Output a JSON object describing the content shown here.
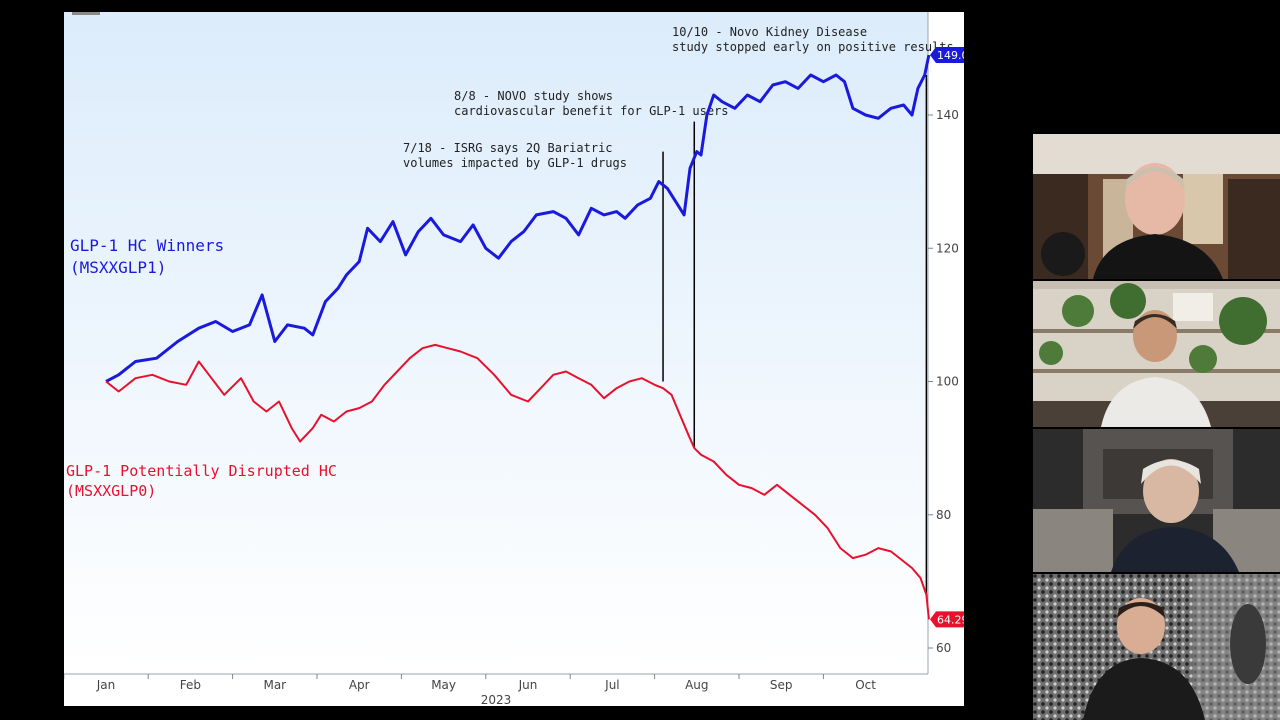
{
  "chart_data": {
    "type": "line",
    "xlabel": "2023",
    "ylabel": "",
    "ylim": [
      56,
      152
    ],
    "x_months": [
      "Jan",
      "Feb",
      "Mar",
      "Apr",
      "May",
      "Jun",
      "Jul",
      "Aug",
      "Sep",
      "Oct"
    ],
    "y_ticks": [
      "60",
      "80",
      "100",
      "120",
      "140"
    ],
    "series": [
      {
        "name": "GLP-1 HC Winners (MSXXGLP1)",
        "color": "#1a1adc",
        "last_value_label": "149.0",
        "points": [
          [
            0.0,
            100.0
          ],
          [
            0.15,
            101.0
          ],
          [
            0.35,
            103.0
          ],
          [
            0.6,
            103.5
          ],
          [
            0.85,
            106.0
          ],
          [
            1.1,
            108.0
          ],
          [
            1.3,
            109.0
          ],
          [
            1.5,
            107.5
          ],
          [
            1.7,
            108.5
          ],
          [
            1.85,
            113.0
          ],
          [
            2.0,
            106.0
          ],
          [
            2.15,
            108.5
          ],
          [
            2.35,
            108.0
          ],
          [
            2.45,
            107.0
          ],
          [
            2.6,
            112.0
          ],
          [
            2.75,
            114.0
          ],
          [
            2.85,
            116.0
          ],
          [
            3.0,
            118.0
          ],
          [
            3.1,
            123.0
          ],
          [
            3.25,
            121.0
          ],
          [
            3.4,
            124.0
          ],
          [
            3.55,
            119.0
          ],
          [
            3.7,
            122.5
          ],
          [
            3.85,
            124.5
          ],
          [
            4.0,
            122.0
          ],
          [
            4.2,
            121.0
          ],
          [
            4.35,
            123.5
          ],
          [
            4.5,
            120.0
          ],
          [
            4.65,
            118.5
          ],
          [
            4.8,
            121.0
          ],
          [
            4.95,
            122.5
          ],
          [
            5.1,
            125.0
          ],
          [
            5.3,
            125.5
          ],
          [
            5.45,
            124.5
          ],
          [
            5.6,
            122.0
          ],
          [
            5.75,
            126.0
          ],
          [
            5.9,
            125.0
          ],
          [
            6.05,
            125.5
          ],
          [
            6.15,
            124.5
          ],
          [
            6.3,
            126.5
          ],
          [
            6.45,
            127.5
          ],
          [
            6.55,
            130.0
          ],
          [
            6.65,
            129.0
          ],
          [
            6.75,
            127.0
          ],
          [
            6.85,
            125.0
          ],
          [
            6.92,
            132.0
          ],
          [
            7.0,
            134.5
          ],
          [
            7.05,
            134.0
          ],
          [
            7.12,
            140.0
          ],
          [
            7.2,
            143.0
          ],
          [
            7.3,
            142.0
          ],
          [
            7.45,
            141.0
          ],
          [
            7.6,
            143.0
          ],
          [
            7.75,
            142.0
          ],
          [
            7.9,
            144.5
          ],
          [
            8.05,
            145.0
          ],
          [
            8.2,
            144.0
          ],
          [
            8.35,
            146.0
          ],
          [
            8.5,
            145.0
          ],
          [
            8.65,
            146.0
          ],
          [
            8.75,
            145.0
          ],
          [
            8.85,
            141.0
          ],
          [
            9.0,
            140.0
          ],
          [
            9.15,
            139.5
          ],
          [
            9.3,
            141.0
          ],
          [
            9.45,
            141.5
          ],
          [
            9.55,
            140.0
          ],
          [
            9.62,
            144.0
          ],
          [
            9.7,
            146.0
          ],
          [
            9.75,
            149.0
          ]
        ]
      },
      {
        "name": "GLP-1 Potentially Disrupted HC (MSXXGLP0)",
        "color": "#e8112d",
        "last_value_label": "64.29",
        "points": [
          [
            0.0,
            100.0
          ],
          [
            0.15,
            98.5
          ],
          [
            0.35,
            100.5
          ],
          [
            0.55,
            101.0
          ],
          [
            0.75,
            100.0
          ],
          [
            0.95,
            99.5
          ],
          [
            1.1,
            103.0
          ],
          [
            1.25,
            100.5
          ],
          [
            1.4,
            98.0
          ],
          [
            1.6,
            100.5
          ],
          [
            1.75,
            97.0
          ],
          [
            1.9,
            95.5
          ],
          [
            2.05,
            97.0
          ],
          [
            2.2,
            93.0
          ],
          [
            2.3,
            91.0
          ],
          [
            2.45,
            93.0
          ],
          [
            2.55,
            95.0
          ],
          [
            2.7,
            94.0
          ],
          [
            2.85,
            95.5
          ],
          [
            3.0,
            96.0
          ],
          [
            3.15,
            97.0
          ],
          [
            3.3,
            99.5
          ],
          [
            3.45,
            101.5
          ],
          [
            3.6,
            103.5
          ],
          [
            3.75,
            105.0
          ],
          [
            3.9,
            105.5
          ],
          [
            4.05,
            105.0
          ],
          [
            4.2,
            104.5
          ],
          [
            4.4,
            103.5
          ],
          [
            4.6,
            101.0
          ],
          [
            4.8,
            98.0
          ],
          [
            5.0,
            97.0
          ],
          [
            5.15,
            99.0
          ],
          [
            5.3,
            101.0
          ],
          [
            5.45,
            101.5
          ],
          [
            5.6,
            100.5
          ],
          [
            5.75,
            99.5
          ],
          [
            5.9,
            97.5
          ],
          [
            6.05,
            99.0
          ],
          [
            6.2,
            100.0
          ],
          [
            6.35,
            100.5
          ],
          [
            6.5,
            99.5
          ],
          [
            6.6,
            99.0
          ],
          [
            6.7,
            98.0
          ],
          [
            6.8,
            95.0
          ],
          [
            6.9,
            92.0
          ],
          [
            6.97,
            90.0
          ],
          [
            7.05,
            89.0
          ],
          [
            7.2,
            88.0
          ],
          [
            7.35,
            86.0
          ],
          [
            7.5,
            84.5
          ],
          [
            7.65,
            84.0
          ],
          [
            7.8,
            83.0
          ],
          [
            7.95,
            84.5
          ],
          [
            8.1,
            83.0
          ],
          [
            8.25,
            81.5
          ],
          [
            8.4,
            80.0
          ],
          [
            8.55,
            78.0
          ],
          [
            8.7,
            75.0
          ],
          [
            8.85,
            73.5
          ],
          [
            9.0,
            74.0
          ],
          [
            9.15,
            75.0
          ],
          [
            9.3,
            74.5
          ],
          [
            9.45,
            73.0
          ],
          [
            9.55,
            72.0
          ],
          [
            9.65,
            70.5
          ],
          [
            9.72,
            68.0
          ],
          [
            9.75,
            64.29
          ]
        ]
      }
    ],
    "annotations": [
      {
        "lines": [
          "7/18 - ISRG says 2Q Bariatric",
          "volumes impacted by GLP-1 drugs"
        ],
        "x": 6.6,
        "y_from": 100,
        "y_to": 134.5
      },
      {
        "lines": [
          "8/8 - NOVO study shows",
          "cardiovascular benefit for GLP-1 users"
        ],
        "x": 6.97,
        "y_from": 90,
        "y_to": 139
      },
      {
        "lines": [
          "10/10 - Novo Kidney Disease",
          "study stopped early on positive results"
        ],
        "x": 9.72,
        "y_from": 68,
        "y_to": 146
      }
    ],
    "legend_labels": [
      {
        "lines": [
          "GLP-1 HC Winners",
          "(MSXXGLP1)"
        ],
        "color": "#1a1adc"
      },
      {
        "lines": [
          "GLP-1 Potentially Disrupted HC",
          "(MSXXGLP0)"
        ],
        "color": "#e8112d"
      }
    ]
  },
  "participants": [
    {
      "name_icon": "participant-video-1"
    },
    {
      "name_icon": "participant-video-2"
    },
    {
      "name_icon": "participant-video-3"
    },
    {
      "name_icon": "participant-video-4"
    }
  ]
}
